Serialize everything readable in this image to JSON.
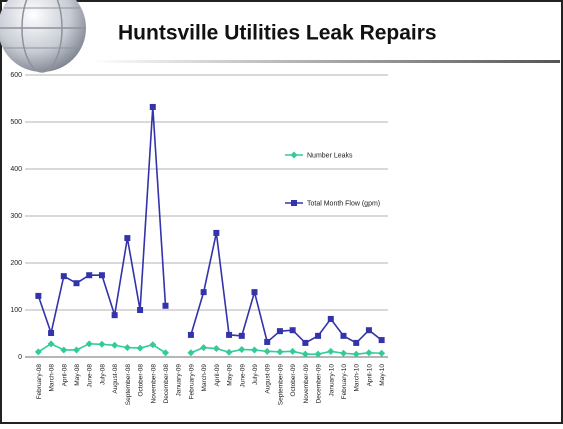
{
  "chart_data": {
    "type": "line",
    "title": "Huntsville Utilities Leak Repairs",
    "categories": [
      "February-08",
      "March-08",
      "April-08",
      "May-08",
      "June-08",
      "July-08",
      "August-08",
      "September-08",
      "October-08",
      "November-08",
      "December-08",
      "January-09",
      "February-09",
      "March-09",
      "April-09",
      "May-09",
      "June-09",
      "July-09",
      "August-09",
      "September-09",
      "October-09",
      "November-09",
      "December-09",
      "January-10",
      "February-10",
      "March-10",
      "April-10",
      "May-10"
    ],
    "series": [
      {
        "name": "Number Leaks",
        "color": "#33cc99",
        "marker": "diamond",
        "values": [
          11,
          28,
          15,
          15,
          28,
          27,
          25,
          20,
          19,
          26,
          9,
          null,
          9,
          20,
          18,
          10,
          16,
          15,
          12,
          11,
          12,
          6,
          6,
          12,
          8,
          6,
          9,
          8
        ]
      },
      {
        "name": "Total Month Flow (gpm)",
        "color": "#3333aa",
        "marker": "square",
        "values": [
          130,
          51,
          172,
          157,
          174,
          174,
          89,
          253,
          100,
          532,
          109,
          null,
          47,
          138,
          264,
          47,
          45,
          138,
          32,
          55,
          57,
          30,
          45,
          81,
          45,
          30,
          57,
          36
        ]
      }
    ],
    "ylim": [
      0,
      600
    ],
    "yticks": [
      0,
      100,
      200,
      300,
      400,
      500,
      600
    ],
    "grid": true,
    "legend": "right"
  }
}
